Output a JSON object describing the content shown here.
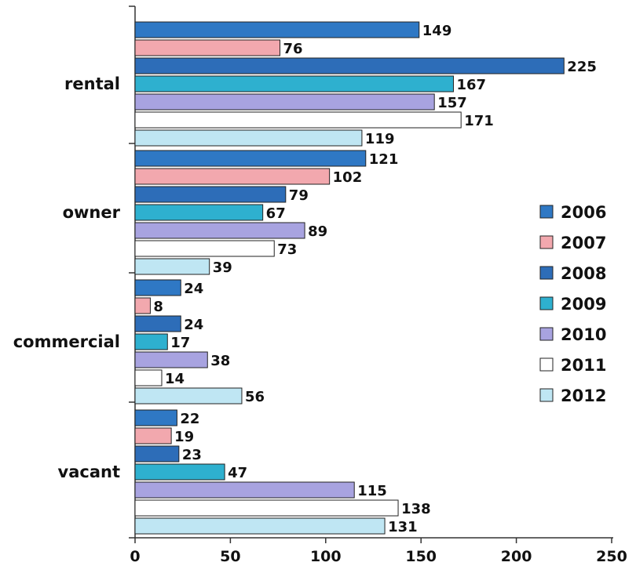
{
  "chart_data": {
    "type": "bar",
    "orientation": "horizontal",
    "categories": [
      "rental",
      "owner",
      "commercial",
      "vacant"
    ],
    "series": [
      {
        "name": "2006",
        "color": "#2f78c4",
        "values": [
          149,
          121,
          24,
          22
        ]
      },
      {
        "name": "2007",
        "color": "#f2a8ae",
        "values": [
          76,
          102,
          8,
          19
        ]
      },
      {
        "name": "2008",
        "color": "#2d6db8",
        "values": [
          225,
          79,
          24,
          23
        ]
      },
      {
        "name": "2009",
        "color": "#2eb0cf",
        "values": [
          167,
          67,
          17,
          47
        ]
      },
      {
        "name": "2010",
        "color": "#a8a3e0",
        "values": [
          157,
          89,
          38,
          115
        ]
      },
      {
        "name": "2011",
        "color": "#ffffff",
        "values": [
          171,
          73,
          14,
          138
        ]
      },
      {
        "name": "2012",
        "color": "#bfe6f3",
        "values": [
          119,
          39,
          56,
          131
        ]
      }
    ],
    "xticks": [
      "0",
      "50",
      "100",
      "150",
      "200",
      "250"
    ],
    "xlim": [
      0,
      250
    ],
    "title": "",
    "xlabel": "",
    "ylabel": "",
    "grid": false,
    "legend": "right"
  }
}
